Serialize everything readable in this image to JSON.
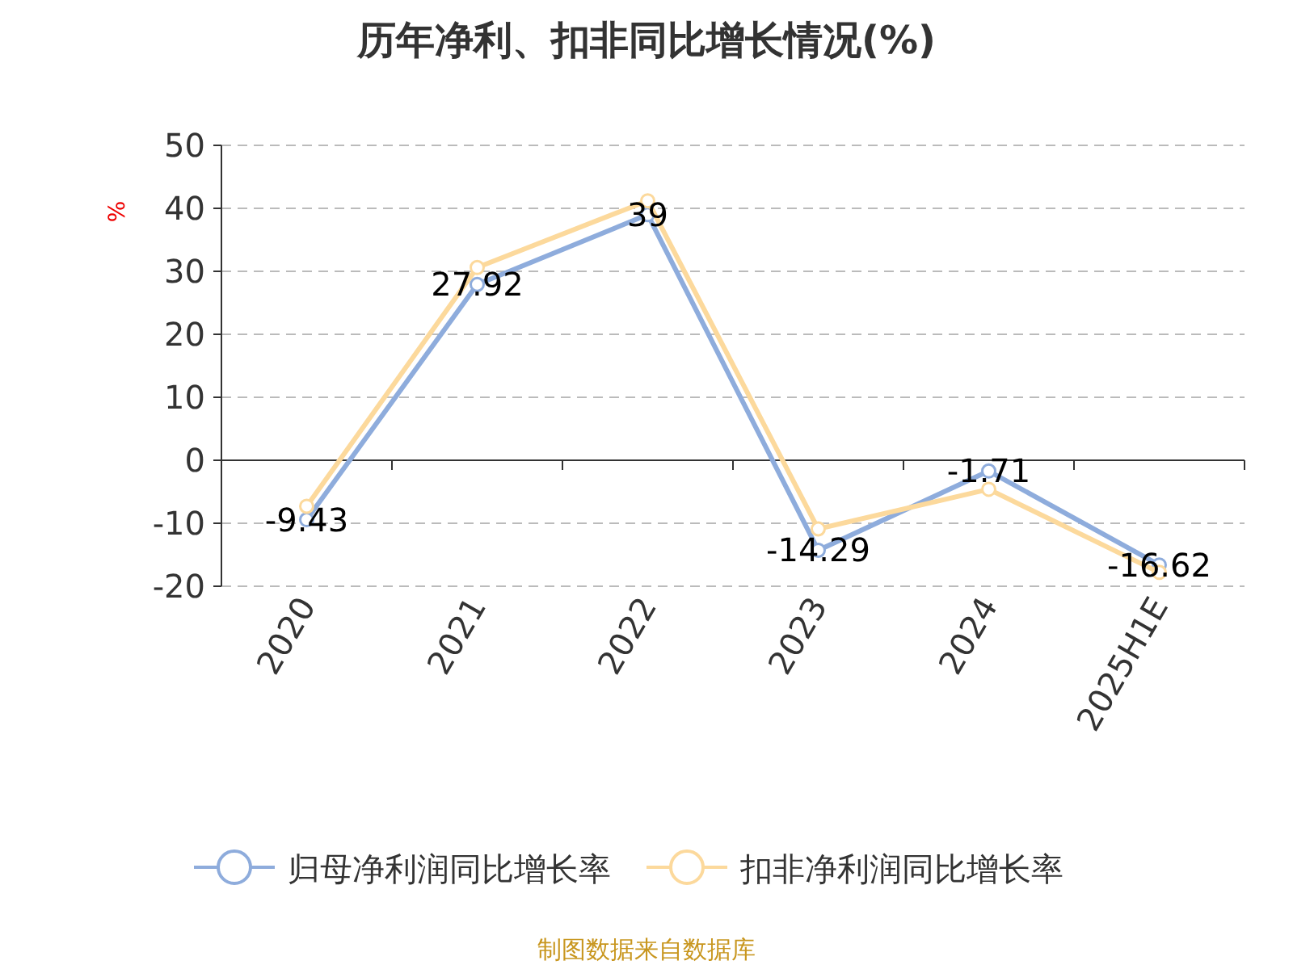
{
  "chart_data": {
    "type": "line",
    "title": "历年净利、扣非同比增长情况(%)",
    "ylabel": "%",
    "categories": [
      "2020",
      "2021",
      "2022",
      "2023",
      "2024",
      "2025H1E"
    ],
    "series": [
      {
        "name": "归母净利润同比增长率",
        "color": "#8eacdc",
        "values": [
          -9.43,
          27.92,
          39,
          -14.29,
          -1.71,
          -16.62
        ],
        "value_labels": [
          "-9.43",
          "27.92",
          "39",
          "-14.29",
          "-1.71",
          "-16.62"
        ]
      },
      {
        "name": "扣非净利润同比增长率",
        "color": "#fcd99c",
        "values": [
          -7.3,
          30.6,
          41.2,
          -10.9,
          -4.6,
          -17.8
        ]
      }
    ],
    "ylim": [
      -20,
      50
    ],
    "yticks": [
      -20,
      -10,
      0,
      10,
      20,
      30,
      40,
      50
    ],
    "grid": "y",
    "legend": "bottom",
    "marker": "circle",
    "line_style": "solid",
    "annotations": [
      "制图数据来自数据库"
    ]
  }
}
